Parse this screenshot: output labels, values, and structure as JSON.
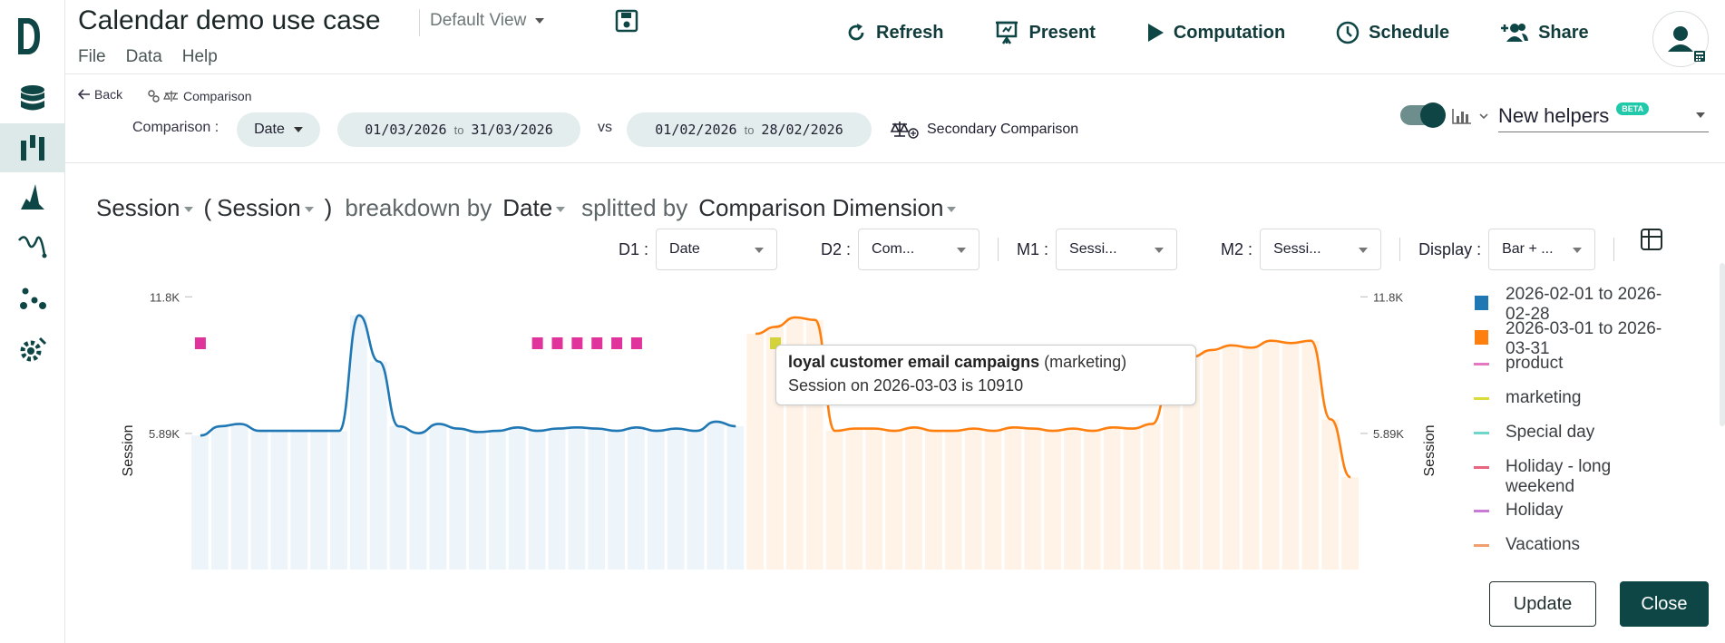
{
  "app": {
    "title": "Calendar demo use case",
    "view": "Default View",
    "menu": [
      "File",
      "Data",
      "Help"
    ]
  },
  "toolbar": {
    "refresh": "Refresh",
    "present": "Present",
    "computation": "Computation",
    "schedule": "Schedule",
    "share": "Share"
  },
  "comparison": {
    "back": "Back",
    "tag": "Comparison",
    "label": "Comparison :",
    "dimension": "Date",
    "range_a_from": "01/03/2026",
    "range_a_to": "31/03/2026",
    "vs": "vs",
    "range_b_from": "01/02/2026",
    "range_b_to": "28/02/2026",
    "to": "to",
    "secondary": "Secondary Comparison",
    "helpers": "New helpers",
    "beta": "BETA"
  },
  "chart_header": {
    "measure": "Session",
    "measure2": "Session",
    "paren_open": "(",
    "paren_close": ")",
    "breakdown_by": "breakdown by",
    "breakdown": "Date",
    "splitted_by": "splitted by",
    "split": "Comparison Dimension"
  },
  "controls": {
    "d1_label": "D1 :",
    "d1": "Date",
    "d2_label": "D2 :",
    "d2": "Com...",
    "m1_label": "M1 :",
    "m1": "Sessi...",
    "m2_label": "M2 :",
    "m2": "Sessi...",
    "display_label": "Display :",
    "display": "Bar + ..."
  },
  "legend": [
    {
      "label": "2026-02-01 to 2026-02-28",
      "color": "#1f77b4",
      "shape": "square"
    },
    {
      "label": "2026-03-01 to 2026-03-31",
      "color": "#ff7f0e",
      "shape": "square"
    },
    {
      "label": "product",
      "color": "#e377c2",
      "shape": "line"
    },
    {
      "label": "marketing",
      "color": "#dbdb3a",
      "shape": "line"
    },
    {
      "label": "Special day",
      "color": "#6fd6c9",
      "shape": "line"
    },
    {
      "label": "Holiday - long weekend",
      "color": "#e8647f",
      "shape": "line"
    },
    {
      "label": "Holiday",
      "color": "#c77ad6",
      "shape": "line"
    },
    {
      "label": "Vacations",
      "color": "#f0a070",
      "shape": "line"
    }
  ],
  "tooltip": {
    "title": "loyal customer email campaigns",
    "category": "(marketing)",
    "text": "Session on 2026-03-03 is 10910"
  },
  "buttons": {
    "update": "Update",
    "close": "Close"
  },
  "chart_data": {
    "type": "line",
    "ylabel": "Session",
    "ylabel_right": "Session",
    "yticks": [
      "5.89K",
      "11.8K"
    ],
    "ylim": [
      0,
      13500
    ],
    "series": [
      {
        "name": "2026-02-01 to 2026-02-28",
        "color": "#1f77b4",
        "x_start": "2026-02-01",
        "values": [
          5800,
          6200,
          6300,
          6000,
          6000,
          6000,
          6000,
          6000,
          11000,
          9000,
          6200,
          5900,
          6300,
          6100,
          5950,
          6000,
          6150,
          6000,
          6100,
          6150,
          6100,
          6000,
          6150,
          6000,
          6100,
          6000,
          6400,
          6200
        ]
      },
      {
        "name": "2026-03-01 to 2026-03-31",
        "color": "#ff7f0e",
        "x_start": "2026-03-01",
        "values": [
          10200,
          10500,
          10910,
          10800,
          6000,
          6100,
          6100,
          6000,
          6150,
          6000,
          6000,
          6100,
          6000,
          6150,
          6100,
          6000,
          6100,
          6000,
          6150,
          6100,
          6300,
          8500,
          9200,
          9500,
          9700,
          9600,
          9900,
          9800,
          9900,
          6500,
          4000
        ]
      }
    ],
    "event_markers": [
      {
        "date": "2026-02-01",
        "category": "product",
        "color": "#e0339c"
      },
      {
        "date": "2026-02-18",
        "category": "product",
        "color": "#e0339c"
      },
      {
        "date": "2026-02-19",
        "category": "product",
        "color": "#e0339c"
      },
      {
        "date": "2026-02-20",
        "category": "product",
        "color": "#e0339c"
      },
      {
        "date": "2026-02-21",
        "category": "product",
        "color": "#e0339c"
      },
      {
        "date": "2026-02-22",
        "category": "product",
        "color": "#e0339c"
      },
      {
        "date": "2026-02-23",
        "category": "product",
        "color": "#e0339c"
      },
      {
        "date": "2026-03-02",
        "category": "marketing",
        "color": "#d4d43a"
      }
    ]
  }
}
